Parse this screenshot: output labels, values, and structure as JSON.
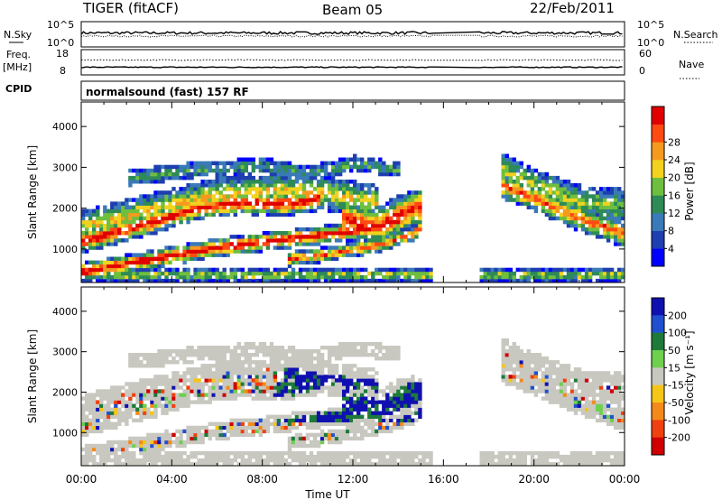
{
  "header": {
    "radar": "TIGER (fitACF)",
    "beam": "Beam 05",
    "date": "22/Feb/2011"
  },
  "status_panel": {
    "nsky_label": "N.Sky",
    "nsearch_label": "N.Search",
    "nsky_ticks": [
      "10^5",
      "10^0"
    ],
    "freq_label": "Freq.",
    "freq_unit": "[MHz]",
    "freq_ticks": [
      "18",
      "8"
    ],
    "nave_label": "Nave",
    "nave_ticks": [
      "60",
      "0"
    ],
    "cpid_label": "CPID",
    "cpid_value": "normalsound (fast) 157 RF",
    "data_gap": [
      "15:30",
      "17:30"
    ]
  },
  "chart_data": [
    {
      "type": "heatmap",
      "name": "power",
      "ylabel": "Slant Range [km]",
      "xlabel": "Time UT",
      "x_ticks": [
        "00:00",
        "04:00",
        "08:00",
        "12:00",
        "16:00",
        "20:00",
        "00:00"
      ],
      "xlim_hours": [
        0,
        24
      ],
      "y_ticks": [
        "1000",
        "2000",
        "3000",
        "4000"
      ],
      "ylim_km": [
        180,
        4600
      ],
      "colorbar": {
        "label": "Power [dB]",
        "ticks": [
          "4",
          "8",
          "12",
          "16",
          "20",
          "24",
          "28"
        ],
        "colors": [
          "#0000ff",
          "#1e3fb0",
          "#3a7ab8",
          "#2e8b57",
          "#6fbf3f",
          "#f2d21f",
          "#f59a1f",
          "#ff4a12",
          "#e00000"
        ]
      }
    },
    {
      "type": "heatmap",
      "name": "velocity",
      "ylabel": "Slant Range [km]",
      "xlabel": "Time UT",
      "x_ticks": [
        "00:00",
        "04:00",
        "08:00",
        "12:00",
        "16:00",
        "20:00",
        "00:00"
      ],
      "xlim_hours": [
        0,
        24
      ],
      "y_ticks": [
        "1000",
        "2000",
        "3000",
        "4000"
      ],
      "ylim_km": [
        180,
        4600
      ],
      "colorbar": {
        "label": "Velocity [m s⁻¹]",
        "ticks": [
          "200",
          "100",
          "50",
          "15",
          "-15",
          "-50",
          "-100",
          "-200"
        ],
        "colors": [
          "#1010b0",
          "#2050d0",
          "#1e7a3a",
          "#6fcf4f",
          "#c8c8c0",
          "#f5c518",
          "#f58a1a",
          "#f04010",
          "#d00000"
        ]
      }
    }
  ],
  "colors": {
    "ground_scatter": "#c8c8c0"
  }
}
